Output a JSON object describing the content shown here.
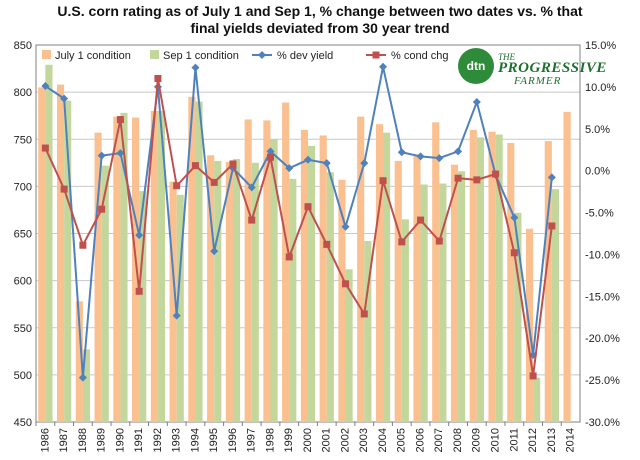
{
  "chart_data": {
    "type": "bar",
    "title_line1": "U.S. corn rating as of July 1 and Sep 1, %  change between two dates vs. % that",
    "title_line2": "final yields deviated from 30 year trend",
    "categories": [
      "1986",
      "1987",
      "1988",
      "1989",
      "1990",
      "1991",
      "1992",
      "1993",
      "1994",
      "1995",
      "1996",
      "1997",
      "1998",
      "1999",
      "2000",
      "2001",
      "2002",
      "2003",
      "2004",
      "2005",
      "2006",
      "2007",
      "2008",
      "2009",
      "2010",
      "2011",
      "2012",
      "2013",
      "2014"
    ],
    "left_axis": {
      "min": 450,
      "max": 850,
      "ticks": [
        450,
        500,
        550,
        600,
        650,
        700,
        750,
        800,
        850
      ]
    },
    "right_axis": {
      "min": -30,
      "max": 15,
      "tick_labels": [
        "-30.0%",
        "-25.0%",
        "-20.0%",
        "-15.0%",
        "-10.0%",
        "-5.0%",
        "0.0%",
        "5.0%",
        "10.0%",
        "15.0%"
      ]
    },
    "grid": true,
    "legend_position": "top",
    "series": [
      {
        "name": "July 1 condition",
        "axis": "left",
        "kind": "bar",
        "color": "#fac090",
        "values": [
          805,
          808,
          578,
          757,
          774,
          773,
          780,
          705,
          795,
          733,
          726,
          771,
          770,
          789,
          760,
          754,
          707,
          774,
          766,
          727,
          734,
          768,
          723,
          760,
          758,
          746,
          655,
          748,
          779
        ]
      },
      {
        "name": "Sep 1 condition",
        "axis": "left",
        "kind": "bar",
        "color": "#c3d69b",
        "values": [
          829,
          791,
          527,
          722,
          778,
          695,
          780,
          691,
          790,
          727,
          729,
          725,
          750,
          708,
          743,
          715,
          612,
          642,
          757,
          665,
          702,
          703,
          716,
          752,
          755,
          672,
          497,
          697,
          null
        ]
      },
      {
        "name": "% dev yield",
        "axis": "right",
        "kind": "line",
        "color": "#4f81bd",
        "marker": "diamond",
        "values": [
          10.1,
          8.6,
          -24.7,
          1.8,
          2.1,
          -7.7,
          10.0,
          -17.3,
          12.3,
          -9.6,
          0.3,
          -2.0,
          2.3,
          0.3,
          1.3,
          0.9,
          -6.7,
          0.9,
          12.4,
          2.2,
          1.7,
          1.5,
          2.3,
          8.2,
          -0.5,
          -5.6,
          -22.0,
          -0.8,
          null
        ]
      },
      {
        "name": "% cond chg",
        "axis": "right",
        "kind": "line",
        "color": "#c0504d",
        "marker": "square",
        "values": [
          2.7,
          -2.2,
          -8.9,
          -4.6,
          6.1,
          -14.4,
          11.0,
          -1.8,
          0.6,
          -1.4,
          0.8,
          -5.9,
          1.6,
          -10.3,
          -4.3,
          -8.8,
          -13.5,
          -17.1,
          -1.2,
          -8.5,
          -5.9,
          -8.4,
          -0.9,
          -1.1,
          -0.4,
          -9.8,
          -24.5,
          -6.6,
          null
        ]
      }
    ]
  },
  "logo": {
    "badge": "dtn",
    "text_top": "THE",
    "text_main": "PROGRESSIVE",
    "text_bottom": "FARMER"
  }
}
